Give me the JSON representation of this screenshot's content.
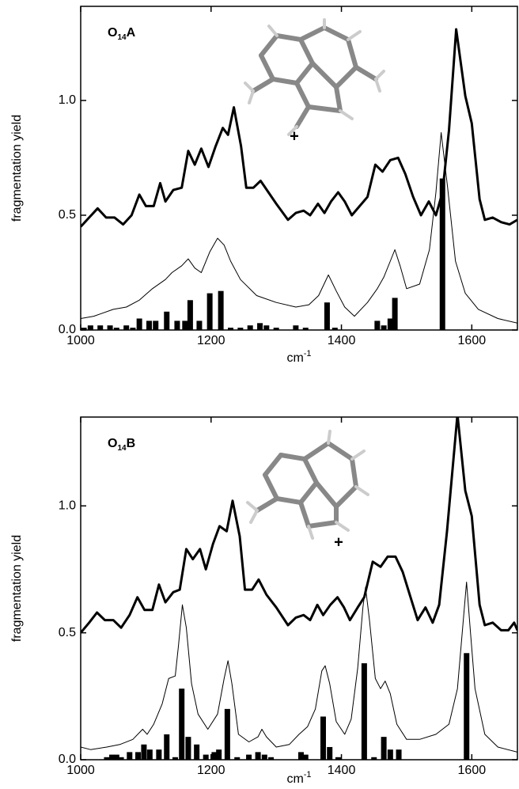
{
  "chart_data": [
    {
      "type": "line",
      "annotation_parts": [
        "O",
        "14",
        "A"
      ],
      "marker_label": "+",
      "xlabel_parts": [
        "cm",
        "-1"
      ],
      "ylabel": "fragmentation yield",
      "xlim": [
        1000,
        1670
      ],
      "xticks": [
        1000,
        1200,
        1400,
        1600
      ],
      "ylim": [
        0,
        1.41
      ],
      "yticks": [
        {
          "value": 0,
          "label": "0.0"
        },
        0.5,
        {
          "value": 1,
          "label": "1.0"
        }
      ],
      "series": [
        {
          "type": "line",
          "color": "#000000",
          "width": 3,
          "x": [
            1000,
            1013,
            1026,
            1039,
            1052,
            1065,
            1078,
            1090,
            1100,
            1112,
            1122,
            1130,
            1142,
            1155,
            1165,
            1175,
            1185,
            1196,
            1207,
            1218,
            1226,
            1235,
            1246,
            1254,
            1265,
            1276,
            1288,
            1300,
            1318,
            1330,
            1342,
            1352,
            1364,
            1374,
            1384,
            1395,
            1405,
            1416,
            1428,
            1440,
            1452,
            1463,
            1475,
            1487,
            1498,
            1510,
            1522,
            1534,
            1545,
            1555,
            1565,
            1576,
            1590,
            1600,
            1612,
            1620,
            1632,
            1645,
            1658,
            1670
          ],
          "values": [
            0.45,
            0.49,
            0.53,
            0.49,
            0.49,
            0.46,
            0.5,
            0.59,
            0.54,
            0.54,
            0.64,
            0.56,
            0.61,
            0.62,
            0.78,
            0.72,
            0.79,
            0.71,
            0.8,
            0.88,
            0.85,
            0.97,
            0.8,
            0.62,
            0.62,
            0.65,
            0.6,
            0.55,
            0.48,
            0.51,
            0.52,
            0.5,
            0.55,
            0.51,
            0.56,
            0.6,
            0.56,
            0.5,
            0.54,
            0.58,
            0.72,
            0.69,
            0.74,
            0.75,
            0.68,
            0.58,
            0.5,
            0.56,
            0.5,
            0.6,
            0.87,
            1.31,
            1.02,
            0.9,
            0.57,
            0.48,
            0.49,
            0.47,
            0.46,
            0.48
          ]
        },
        {
          "type": "line",
          "color": "#000000",
          "width": 1,
          "x": [
            1000,
            1020,
            1050,
            1070,
            1090,
            1110,
            1130,
            1140,
            1155,
            1165,
            1175,
            1185,
            1198,
            1210,
            1220,
            1230,
            1245,
            1270,
            1300,
            1330,
            1350,
            1365,
            1380,
            1392,
            1405,
            1420,
            1440,
            1455,
            1465,
            1475,
            1482,
            1490,
            1500,
            1520,
            1535,
            1545,
            1553,
            1563,
            1575,
            1590,
            1610,
            1640,
            1670
          ],
          "values": [
            0.05,
            0.06,
            0.09,
            0.1,
            0.13,
            0.18,
            0.22,
            0.25,
            0.28,
            0.31,
            0.27,
            0.25,
            0.34,
            0.4,
            0.37,
            0.3,
            0.22,
            0.15,
            0.12,
            0.1,
            0.11,
            0.15,
            0.24,
            0.17,
            0.1,
            0.06,
            0.12,
            0.18,
            0.23,
            0.3,
            0.35,
            0.28,
            0.18,
            0.2,
            0.35,
            0.6,
            0.86,
            0.62,
            0.3,
            0.16,
            0.09,
            0.05,
            0.03
          ]
        },
        {
          "type": "bar",
          "color": "#000000",
          "x": [
            1005,
            1015,
            1030,
            1045,
            1055,
            1070,
            1080,
            1090,
            1105,
            1115,
            1132,
            1148,
            1160,
            1168,
            1182,
            1198,
            1215,
            1230,
            1245,
            1260,
            1275,
            1285,
            1300,
            1330,
            1345,
            1378,
            1390,
            1455,
            1465,
            1475,
            1482,
            1555
          ],
          "values": [
            0.01,
            0.02,
            0.02,
            0.02,
            0.01,
            0.02,
            0.01,
            0.05,
            0.04,
            0.04,
            0.08,
            0.04,
            0.04,
            0.13,
            0.04,
            0.16,
            0.17,
            0.01,
            0.01,
            0.02,
            0.03,
            0.02,
            0.01,
            0.02,
            0.01,
            0.12,
            0.01,
            0.04,
            0.02,
            0.05,
            0.14,
            0.66
          ]
        }
      ]
    },
    {
      "type": "line",
      "annotation_parts": [
        "O",
        "14",
        "B"
      ],
      "marker_label": "+",
      "xlabel_parts": [
        "cm",
        "-1"
      ],
      "ylabel": "fragmentation yield",
      "xlim": [
        1000,
        1670
      ],
      "xticks": [
        1000,
        1200,
        1400,
        1600
      ],
      "ylim": [
        0,
        1.35
      ],
      "yticks": [
        {
          "value": 0,
          "label": "0.0"
        },
        0.5,
        {
          "value": 1,
          "label": "1.0"
        }
      ],
      "series": [
        {
          "type": "line",
          "color": "#000000",
          "width": 3,
          "x": [
            1000,
            1013,
            1025,
            1037,
            1050,
            1062,
            1075,
            1087,
            1098,
            1110,
            1120,
            1130,
            1142,
            1152,
            1162,
            1172,
            1183,
            1192,
            1203,
            1213,
            1224,
            1233,
            1244,
            1252,
            1263,
            1273,
            1285,
            1300,
            1318,
            1330,
            1342,
            1352,
            1363,
            1372,
            1383,
            1394,
            1404,
            1413,
            1425,
            1435,
            1448,
            1460,
            1471,
            1483,
            1494,
            1506,
            1517,
            1529,
            1540,
            1550,
            1562,
            1578,
            1590,
            1600,
            1612,
            1620,
            1632,
            1645,
            1656,
            1665,
            1670
          ],
          "values": [
            0.5,
            0.54,
            0.58,
            0.55,
            0.55,
            0.52,
            0.57,
            0.64,
            0.59,
            0.59,
            0.69,
            0.62,
            0.66,
            0.67,
            0.83,
            0.79,
            0.83,
            0.75,
            0.85,
            0.92,
            0.9,
            1.02,
            0.88,
            0.67,
            0.67,
            0.71,
            0.65,
            0.6,
            0.53,
            0.56,
            0.57,
            0.55,
            0.61,
            0.57,
            0.61,
            0.64,
            0.6,
            0.55,
            0.6,
            0.64,
            0.78,
            0.76,
            0.8,
            0.8,
            0.74,
            0.64,
            0.55,
            0.6,
            0.54,
            0.61,
            0.9,
            1.36,
            1.06,
            0.96,
            0.61,
            0.53,
            0.54,
            0.51,
            0.51,
            0.54,
            0.51
          ]
        },
        {
          "type": "line",
          "color": "#000000",
          "width": 1,
          "x": [
            1000,
            1015,
            1040,
            1060,
            1080,
            1095,
            1102,
            1112,
            1125,
            1135,
            1145,
            1150,
            1156,
            1162,
            1170,
            1180,
            1195,
            1210,
            1220,
            1226,
            1232,
            1242,
            1258,
            1272,
            1278,
            1285,
            1300,
            1320,
            1335,
            1348,
            1360,
            1370,
            1375,
            1382,
            1392,
            1405,
            1415,
            1425,
            1433,
            1437,
            1443,
            1452,
            1460,
            1467,
            1475,
            1485,
            1500,
            1520,
            1545,
            1565,
            1578,
            1587,
            1592,
            1598,
            1605,
            1620,
            1640,
            1670
          ],
          "values": [
            0.05,
            0.04,
            0.05,
            0.06,
            0.08,
            0.12,
            0.1,
            0.14,
            0.22,
            0.32,
            0.33,
            0.45,
            0.61,
            0.52,
            0.3,
            0.18,
            0.12,
            0.18,
            0.32,
            0.39,
            0.3,
            0.1,
            0.07,
            0.09,
            0.12,
            0.09,
            0.05,
            0.06,
            0.1,
            0.13,
            0.2,
            0.35,
            0.37,
            0.3,
            0.15,
            0.1,
            0.16,
            0.36,
            0.6,
            0.68,
            0.55,
            0.32,
            0.28,
            0.31,
            0.26,
            0.14,
            0.08,
            0.08,
            0.1,
            0.14,
            0.28,
            0.55,
            0.7,
            0.5,
            0.28,
            0.1,
            0.05,
            0.03
          ]
        },
        {
          "type": "bar",
          "color": "#000000",
          "x": [
            1040,
            1048,
            1055,
            1062,
            1075,
            1088,
            1097,
            1106,
            1120,
            1132,
            1145,
            1155,
            1165,
            1178,
            1192,
            1205,
            1212,
            1225,
            1240,
            1258,
            1272,
            1282,
            1292,
            1338,
            1345,
            1372,
            1382,
            1395,
            1435,
            1450,
            1465,
            1475,
            1488,
            1592
          ],
          "values": [
            0.01,
            0.02,
            0.02,
            0.01,
            0.03,
            0.03,
            0.06,
            0.04,
            0.04,
            0.1,
            0.01,
            0.28,
            0.09,
            0.06,
            0.02,
            0.03,
            0.04,
            0.2,
            0.01,
            0.02,
            0.03,
            0.02,
            0.01,
            0.03,
            0.02,
            0.17,
            0.05,
            0.01,
            0.38,
            0.01,
            0.09,
            0.04,
            0.04,
            0.42
          ]
        }
      ]
    }
  ]
}
